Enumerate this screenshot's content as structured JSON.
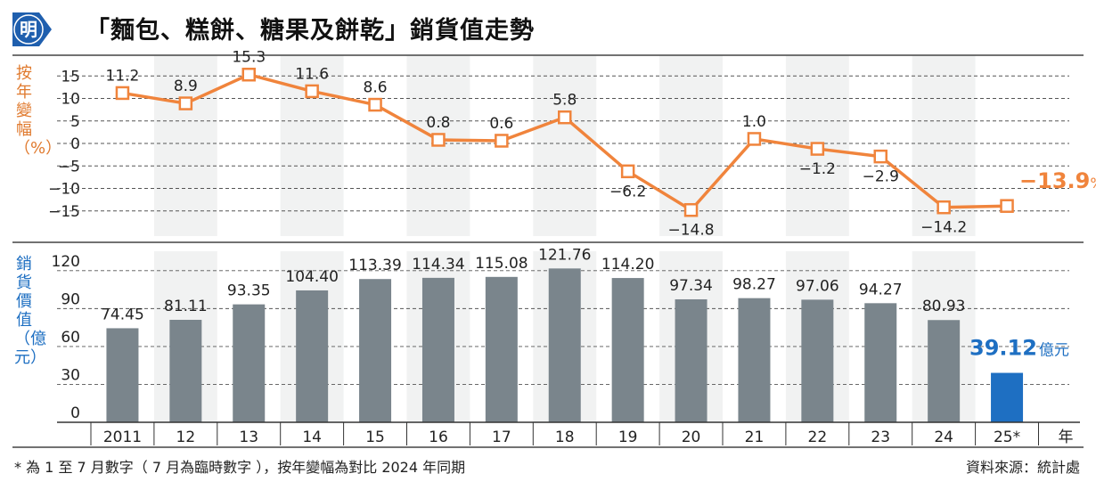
{
  "header": {
    "logo_text": "明",
    "title": "「麵包、糕餅、糖果及餅乾」銷貨值走勢"
  },
  "colors": {
    "line": "#f0843c",
    "bar": "#7a858c",
    "highlight": "#1e6fc2",
    "band": "#f1f2f2",
    "label_line_axis": "#e07a2e",
    "label_bar_axis": "#1e6fc2"
  },
  "chart_data": [
    {
      "type": "line",
      "ylabel": "按年變幅（%）",
      "ylim": [
        -15,
        15
      ],
      "yticks": [
        "15",
        "10",
        "5",
        "0",
        "−5",
        "−10",
        "−15"
      ],
      "categories": [
        "2011",
        "12",
        "13",
        "14",
        "15",
        "16",
        "17",
        "18",
        "19",
        "20",
        "21",
        "22",
        "23",
        "24",
        "25*"
      ],
      "series": [
        {
          "values": [
            11.2,
            8.9,
            15.3,
            11.6,
            8.6,
            0.8,
            0.6,
            5.8,
            -6.2,
            -14.8,
            1.0,
            -1.2,
            -2.9,
            -14.2,
            -13.9
          ],
          "labels": [
            "11.2",
            "8.9",
            "15.3",
            "11.6",
            "8.6",
            "0.8",
            "0.6",
            "5.8",
            "−6.2",
            "−14.8",
            "1.0",
            "−1.2",
            "−2.9",
            "−14.2",
            "−13.9"
          ],
          "highlight_label": "−13.9",
          "highlight_unit": "%"
        }
      ]
    },
    {
      "type": "bar",
      "ylabel": "銷貨價值（億元）",
      "ylim": [
        0,
        120
      ],
      "yticks": [
        "120",
        "90",
        "60",
        "30",
        "0"
      ],
      "xlabel": "年",
      "categories": [
        "2011",
        "12",
        "13",
        "14",
        "15",
        "16",
        "17",
        "18",
        "19",
        "20",
        "21",
        "22",
        "23",
        "24",
        "25*"
      ],
      "series": [
        {
          "values": [
            74.45,
            81.11,
            93.35,
            104.4,
            113.39,
            114.34,
            115.08,
            121.76,
            114.2,
            97.34,
            98.27,
            97.06,
            94.27,
            80.93,
            39.12
          ],
          "labels": [
            "74.45",
            "81.11",
            "93.35",
            "104.40",
            "113.39",
            "114.34",
            "115.08",
            "121.76",
            "114.20",
            "97.34",
            "98.27",
            "97.06",
            "94.27",
            "80.93",
            "39.12"
          ],
          "highlight_label": "39.12",
          "highlight_unit": "億元"
        }
      ]
    }
  ],
  "footer": {
    "note": "* 為 1 至 7 月數字（ 7 月為臨時數字 ），按年變幅為對比 2024 年同期",
    "source": "資料來源：統計處"
  }
}
